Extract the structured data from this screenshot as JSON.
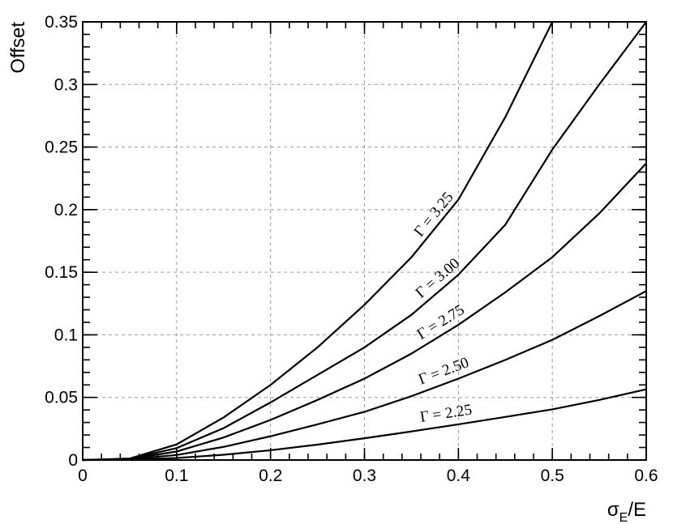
{
  "chart_data": {
    "type": "line",
    "xlabel": "σE/E",
    "xlabel_main": "σ",
    "xlabel_sub": "E",
    "xlabel_tail": "/E",
    "ylabel": "Offset",
    "xlim": [
      0,
      0.6
    ],
    "ylim": [
      0,
      0.35
    ],
    "grid": true,
    "x_ticks": [
      0,
      0.1,
      0.2,
      0.3,
      0.4,
      0.5,
      0.6
    ],
    "x_tick_labels": [
      "0",
      "0.1",
      "0.2",
      "0.3",
      "0.4",
      "0.5",
      "0.6"
    ],
    "y_ticks": [
      0,
      0.05,
      0.1,
      0.15,
      0.2,
      0.25,
      0.3,
      0.35
    ],
    "y_tick_labels": [
      "0",
      "0.05",
      "0.1",
      "0.15",
      "0.2",
      "0.25",
      "0.3",
      "0.35"
    ],
    "x": [
      0.0,
      0.05,
      0.1,
      0.15,
      0.2,
      0.25,
      0.3,
      0.35,
      0.4,
      0.45,
      0.5,
      0.55,
      0.6
    ],
    "series": [
      {
        "name": "Γ = 2.25",
        "label_x": 0.36,
        "values": [
          0.0,
          0.0002,
          0.0016,
          0.0042,
          0.0078,
          0.0123,
          0.0174,
          0.0228,
          0.0285,
          0.0344,
          0.0405,
          0.048,
          0.0565
        ]
      },
      {
        "name": "Γ = 2.50",
        "label_x": 0.36,
        "values": [
          0.0,
          0.0006,
          0.004,
          0.0105,
          0.019,
          0.0285,
          0.0385,
          0.051,
          0.065,
          0.08,
          0.096,
          0.115,
          0.135
        ]
      },
      {
        "name": "Γ = 2.75",
        "label_x": 0.36,
        "values": [
          0.0,
          0.0008,
          0.0068,
          0.018,
          0.032,
          0.048,
          0.065,
          0.085,
          0.108,
          0.134,
          0.162,
          0.197,
          0.237
        ]
      },
      {
        "name": "Γ = 3.00",
        "label_x": 0.36,
        "values": [
          0.0,
          0.001,
          0.0095,
          0.0255,
          0.046,
          0.068,
          0.09,
          0.116,
          0.148,
          0.188,
          0.248,
          0.3,
          0.35
        ]
      },
      {
        "name": "Γ = 3.25",
        "label_x": 0.36,
        "values": [
          0.0,
          0.0012,
          0.0125,
          0.034,
          0.06,
          0.09,
          0.124,
          0.162,
          0.208,
          0.274,
          0.35,
          null,
          null
        ]
      }
    ]
  }
}
